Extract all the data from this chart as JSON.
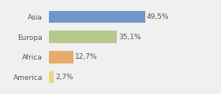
{
  "categories": [
    "Asia",
    "Europa",
    "Africa",
    "America"
  ],
  "values": [
    49.5,
    35.1,
    12.7,
    2.7
  ],
  "bar_colors": [
    "#7096c8",
    "#b5c98a",
    "#e8a96a",
    "#e8d97a"
  ],
  "labels": [
    "49,5%",
    "35,1%",
    "12,7%",
    "2,7%"
  ],
  "background_color": "#f0f0f0",
  "xlim": [
    0,
    75
  ],
  "bar_height": 0.6,
  "label_fontsize": 6.5,
  "tick_fontsize": 6.5,
  "label_color": "#555555",
  "tick_color": "#555555"
}
